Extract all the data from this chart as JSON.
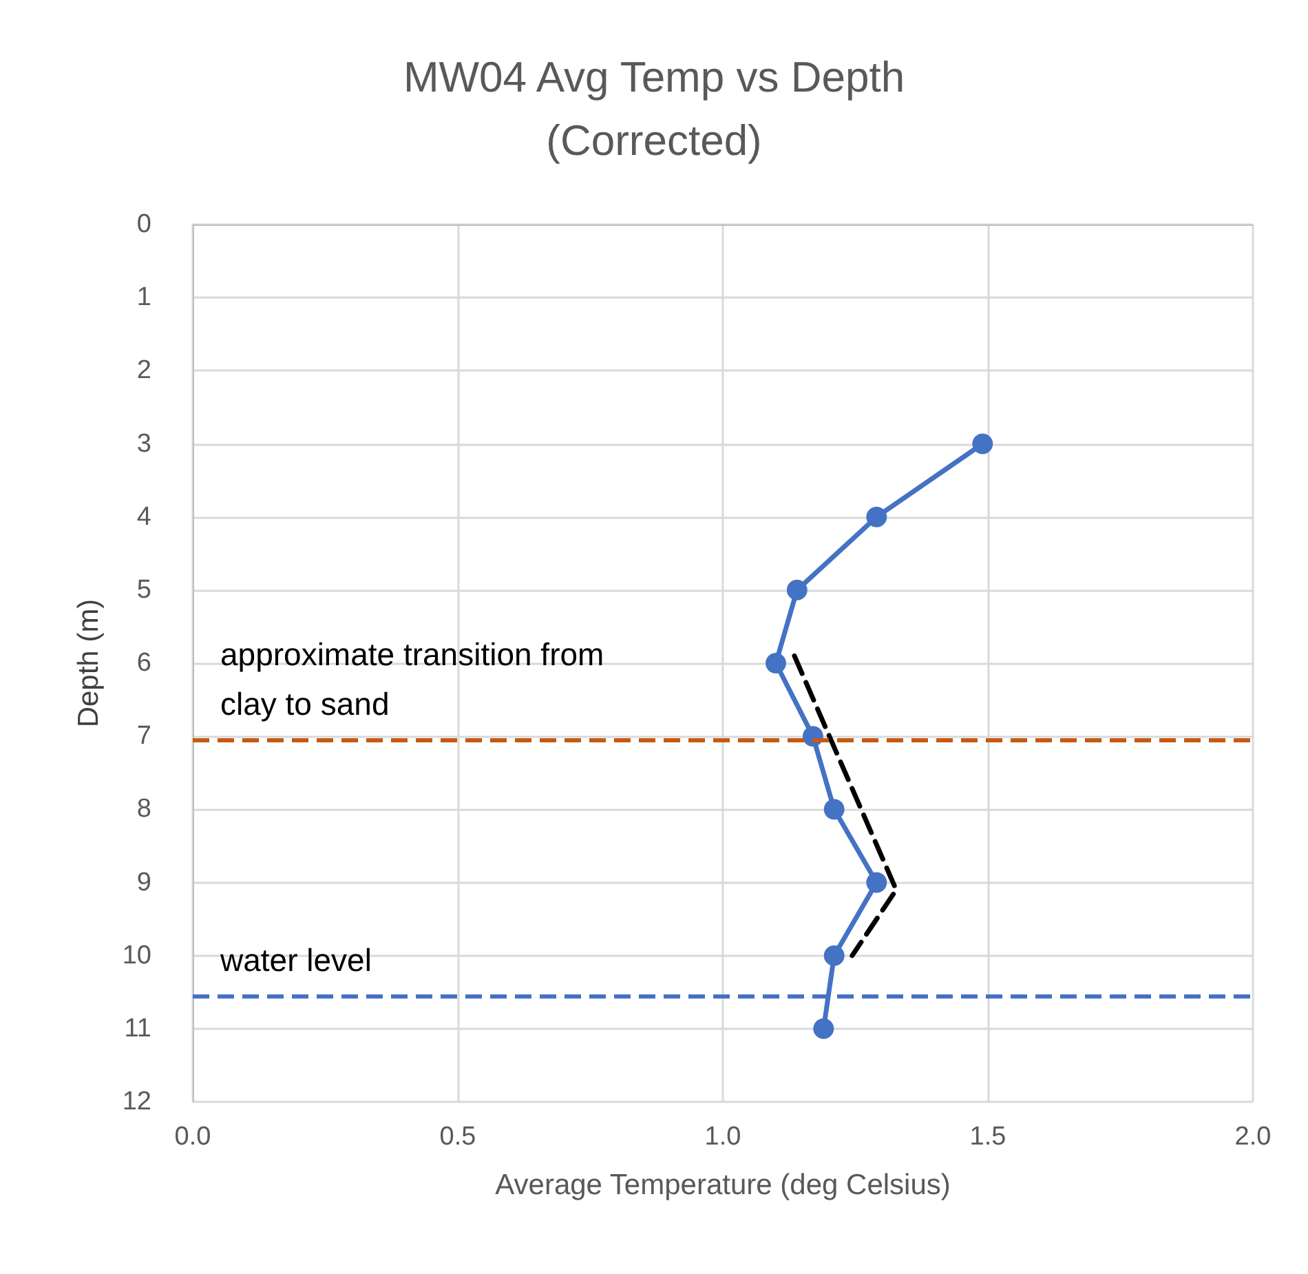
{
  "chart_data": {
    "type": "line",
    "title": "MW04 Avg Temp vs Depth\n(Corrected)",
    "xlabel": "Average Temperature (deg Celsius)",
    "ylabel": "Depth (m)",
    "series": [
      {
        "color": "#4472c4",
        "x": [
          1.49,
          1.29,
          1.14,
          1.1,
          1.17,
          1.21,
          1.29,
          1.21,
          1.19
        ],
        "values": [
          3,
          4,
          5,
          6,
          7,
          8,
          9,
          10,
          11
        ],
        "marker": "circle",
        "line_style": "solid"
      },
      {
        "color": "#000000",
        "x": [
          1.135,
          1.327,
          1.244
        ],
        "values": [
          5.9,
          9.1,
          10.0
        ],
        "marker": "none",
        "line_style": "dashed"
      }
    ],
    "xlim": [
      0,
      2
    ],
    "xticks": [
      {
        "value": 0,
        "label": "0.0"
      },
      {
        "value": 0.5,
        "label": "0.5"
      },
      {
        "value": 1,
        "label": "1.0"
      },
      {
        "value": 1.5,
        "label": "1.5"
      },
      {
        "value": 2,
        "label": "2.0"
      }
    ],
    "ylim": [
      12,
      0
    ],
    "yticks": [
      0,
      1,
      2,
      3,
      4,
      5,
      6,
      7,
      8,
      9,
      10,
      11,
      12
    ],
    "ref_lines": [
      {
        "axis": "y",
        "value": 7.05,
        "label": "approximate transition from clay to sand",
        "color": "#c55a11",
        "line_style": "dashed"
      },
      {
        "axis": "y",
        "value": 10.55,
        "label": "water level",
        "color": "#4472c4",
        "line_style": "dashed"
      }
    ],
    "grid": true
  }
}
